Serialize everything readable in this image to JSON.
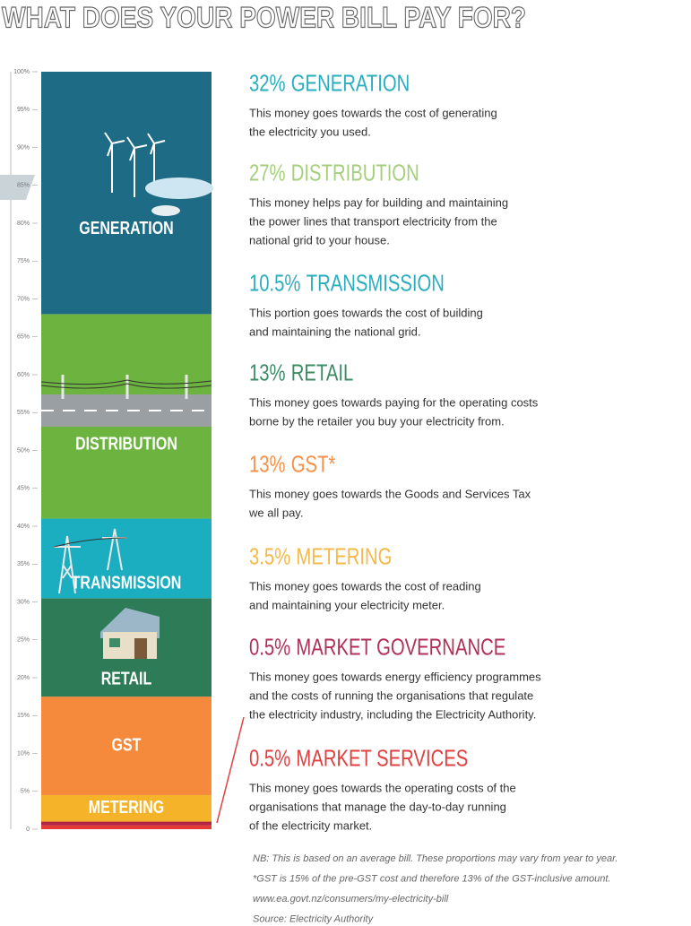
{
  "chart_data": {
    "type": "stacked_bar",
    "title": "WHAT DOES YOUR POWER BILL PAY FOR?",
    "ylim": [
      0,
      100
    ],
    "yticks": [
      0,
      {
        "value": 5,
        "label": "5%"
      },
      {
        "value": 10,
        "label": "10%"
      },
      {
        "value": 15,
        "label": "15%"
      },
      {
        "value": 20,
        "label": "20%"
      },
      {
        "value": 25,
        "label": "25%"
      },
      {
        "value": 30,
        "label": "30%"
      },
      {
        "value": 35,
        "label": "35%"
      },
      {
        "value": 40,
        "label": "40%"
      },
      {
        "value": 45,
        "label": "45%"
      },
      {
        "value": 50,
        "label": "50%"
      },
      {
        "value": 55,
        "label": "55%"
      },
      {
        "value": 60,
        "label": "60%"
      },
      {
        "value": 65,
        "label": "65%"
      },
      {
        "value": 70,
        "label": "70%"
      },
      {
        "value": 75,
        "label": "75%"
      },
      {
        "value": 80,
        "label": "80%"
      },
      {
        "value": 85,
        "label": "85%"
      },
      {
        "value": 90,
        "label": "90%"
      },
      {
        "value": 95,
        "label": "95%"
      },
      {
        "value": 100,
        "label": "100%"
      }
    ],
    "series": [
      {
        "name": "GENERATION",
        "values": [
          32
        ],
        "value_labels": [
          "32%"
        ],
        "color": "#1d6b85",
        "heading_color": "#2aaebf",
        "bar_label": "GENERATION",
        "description": [
          "This money goes towards the cost of generating",
          "the electricity you used."
        ]
      },
      {
        "name": "DISTRIBUTION",
        "values": [
          27
        ],
        "value_labels": [
          "27%"
        ],
        "color": "#6cb33f",
        "heading_color": "#a6cf7c",
        "bar_label": "DISTRIBUTION",
        "description": [
          "This money helps pay for building and maintaining",
          "the power lines that transport electricity from the",
          "national grid to your house."
        ]
      },
      {
        "name": "TRANSMISSION",
        "values": [
          10.5
        ],
        "value_labels": [
          "10.5%"
        ],
        "color": "#1aaec0",
        "heading_color": "#2aaebf",
        "bar_label": "TRANSMISSION",
        "description": [
          "This portion goes towards the cost of building",
          "and maintaining the national grid."
        ]
      },
      {
        "name": "RETAIL",
        "values": [
          13
        ],
        "value_labels": [
          "13%"
        ],
        "color": "#2e7c57",
        "heading_color": "#3d8c66",
        "bar_label": "RETAIL",
        "description": [
          "This money goes towards paying for the operating costs",
          "borne by the retailer you buy your electricity from."
        ]
      },
      {
        "name": "GST*",
        "values": [
          13
        ],
        "value_labels": [
          "13%"
        ],
        "color": "#f58a3c",
        "heading_color": "#f5914a",
        "bar_label": "GST",
        "description": [
          "This money goes towards the Goods and Services Tax",
          "we all pay."
        ]
      },
      {
        "name": "METERING",
        "values": [
          3.5
        ],
        "value_labels": [
          "3.5%"
        ],
        "color": "#f5b32a",
        "heading_color": "#f5b94a",
        "bar_label": "METERING",
        "description": [
          "This money goes towards the cost of reading",
          "and maintaining your electricity meter."
        ]
      },
      {
        "name": "MARKET GOVERNANCE",
        "values": [
          0.5
        ],
        "value_labels": [
          "0.5%"
        ],
        "color": "#b0243f",
        "heading_color": "#b03058",
        "description": [
          "This money goes towards energy efficiency programmes",
          "and the costs of running the organisations that regulate",
          "the electricity industry, including the Electricity Authority."
        ]
      },
      {
        "name": "MARKET SERVICES",
        "values": [
          0.5
        ],
        "value_labels": [
          "0.5%"
        ],
        "color": "#e53935",
        "heading_color": "#e04040",
        "description": [
          "This money goes towards the operating costs of the",
          "organisations that manage the day-to-day running",
          "of the electricity market."
        ]
      }
    ],
    "notes": [
      "NB: This is based on an average bill. These proportions may vary from year to year.",
      "*GST is 15% of the pre-GST cost and therefore 13% of the GST-inclusive amount.",
      "www.ea.govt.nz/consumers/my-electricity-bill",
      "Source: Electricity Authority"
    ]
  }
}
